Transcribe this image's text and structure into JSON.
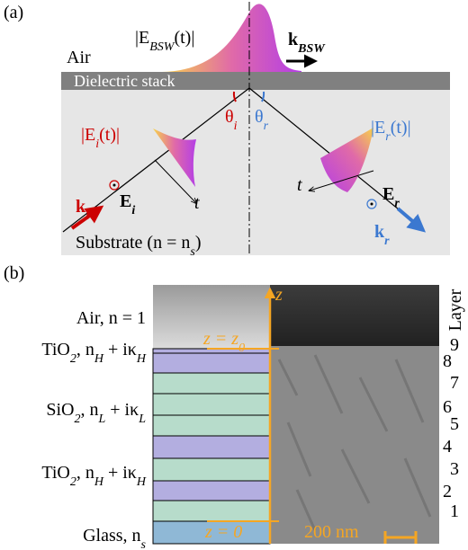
{
  "panel_a": {
    "label": "(a)",
    "air": "Air",
    "e_bsw": [
      {
        "t": "|E"
      },
      {
        "t": "BSW",
        "sub": true
      },
      {
        "t": "(t)|"
      }
    ],
    "k_bsw": [
      {
        "t": "k"
      },
      {
        "t": "BSW",
        "sub": true
      }
    ],
    "stack": "Dielectric stack",
    "theta_i": [
      {
        "t": "θ"
      },
      {
        "t": "i",
        "sub": true
      }
    ],
    "theta_r": [
      {
        "t": "θ"
      },
      {
        "t": "r",
        "sub": true
      }
    ],
    "e_i_env": [
      {
        "t": "|E"
      },
      {
        "t": "i",
        "sub": true
      },
      {
        "t": "(t)|"
      }
    ],
    "e_r_env": [
      {
        "t": "|E"
      },
      {
        "t": "r",
        "sub": true
      },
      {
        "t": "(t)|"
      }
    ],
    "e_i": [
      {
        "t": "E"
      },
      {
        "t": "i",
        "sub": true
      }
    ],
    "e_r": [
      {
        "t": "E"
      },
      {
        "t": "r",
        "sub": true
      }
    ],
    "k_i": [
      {
        "t": "k"
      },
      {
        "t": "i",
        "sub": true
      }
    ],
    "k_r": [
      {
        "t": "k"
      },
      {
        "t": "r",
        "sub": true
      }
    ],
    "t_i": "t",
    "t_r": "t",
    "substrate": [
      {
        "t": "Substrate (n = n"
      },
      {
        "t": "s",
        "sub": true
      },
      {
        "t": ")"
      }
    ]
  },
  "panel_b": {
    "label": "(b)",
    "z": "z",
    "z0": [
      {
        "t": "z = z"
      },
      {
        "t": "0",
        "sub": true
      }
    ],
    "zero": "z = 0",
    "scale": "200 nm",
    "layer_title": "Layer",
    "materials": [
      [
        {
          "t": "Air, n = 1"
        }
      ],
      [
        {
          "t": "TiO"
        },
        {
          "t": "2",
          "sub": true
        },
        {
          "t": ", n"
        },
        {
          "t": "H",
          "sub": true
        },
        {
          "t": " + iκ"
        },
        {
          "t": "H",
          "sub": true
        }
      ],
      [
        {
          "t": "SiO"
        },
        {
          "t": "2",
          "sub": true
        },
        {
          "t": ", n"
        },
        {
          "t": "L",
          "sub": true
        },
        {
          "t": " + iκ"
        },
        {
          "t": "L",
          "sub": true
        }
      ],
      [
        {
          "t": "TiO"
        },
        {
          "t": "2",
          "sub": true
        },
        {
          "t": ", n"
        },
        {
          "t": "H",
          "sub": true
        },
        {
          "t": " + iκ"
        },
        {
          "t": "H",
          "sub": true
        }
      ],
      [
        {
          "t": "Glass, n"
        },
        {
          "t": "s",
          "sub": true
        }
      ]
    ],
    "layers": [
      "9",
      "8",
      "7",
      "6",
      "5",
      "4",
      "3",
      "2",
      "1"
    ]
  }
}
